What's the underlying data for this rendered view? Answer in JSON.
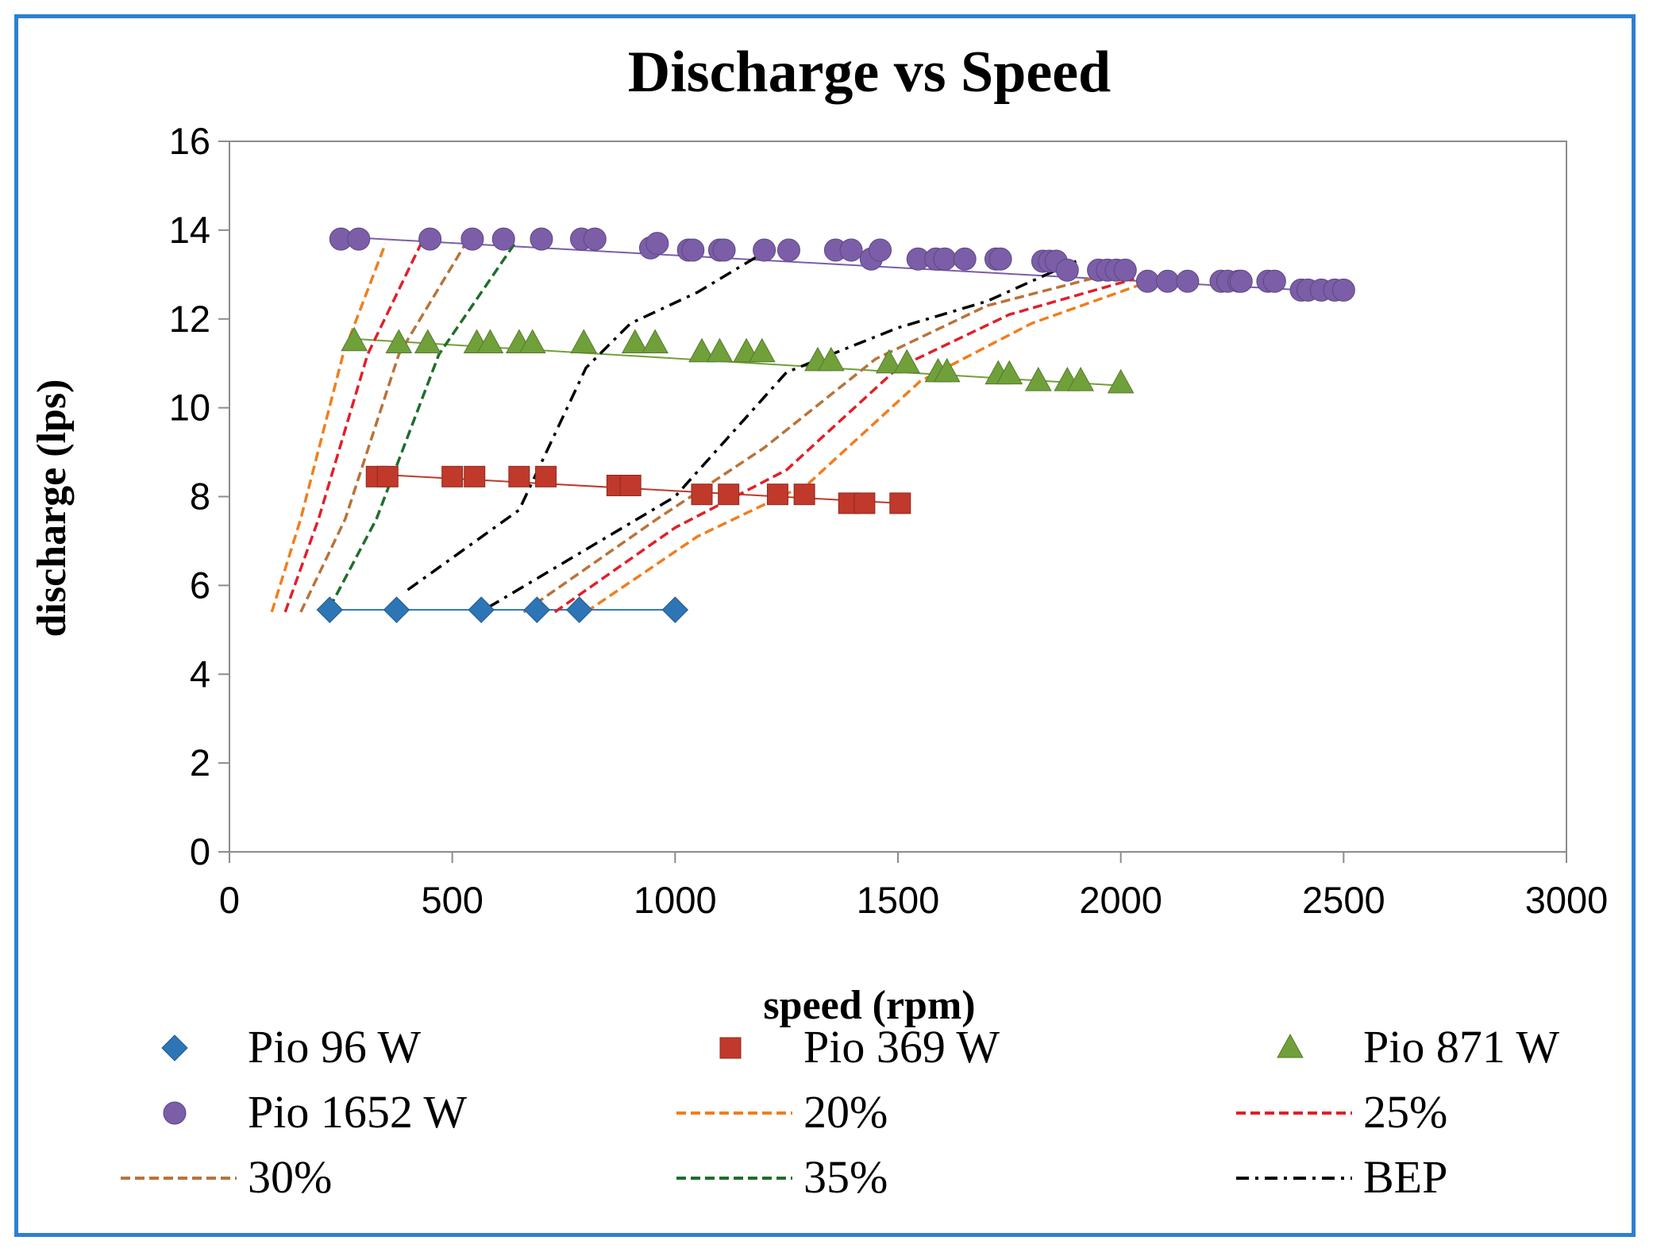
{
  "chart_data": {
    "type": "scatter",
    "title": "Discharge vs Speed",
    "xlabel": "speed (rpm)",
    "ylabel": "discharge (lps)",
    "xlim": [
      0,
      3000
    ],
    "ylim": [
      0,
      16
    ],
    "xticks": [
      0,
      500,
      1000,
      1500,
      2000,
      2500,
      3000
    ],
    "yticks": [
      0,
      2,
      4,
      6,
      8,
      10,
      12,
      14,
      16
    ],
    "grid": false,
    "legend_position": "bottom",
    "series": [
      {
        "name": "Pio 96 W",
        "kind": "markers",
        "marker": "diamond",
        "color": "#2e75b6",
        "x": [
          225,
          375,
          565,
          690,
          785,
          1000
        ],
        "y": [
          5.45,
          5.45,
          5.45,
          5.45,
          5.45,
          5.45
        ]
      },
      {
        "name": "Pio 369 W",
        "kind": "markers",
        "marker": "square",
        "color": "#c0392b",
        "x": [
          330,
          355,
          500,
          550,
          650,
          710,
          870,
          900,
          1060,
          1120,
          1230,
          1290,
          1390,
          1425,
          1505
        ],
        "y": [
          8.45,
          8.45,
          8.45,
          8.45,
          8.45,
          8.45,
          8.25,
          8.25,
          8.05,
          8.05,
          8.05,
          8.05,
          7.85,
          7.85,
          7.85
        ]
      },
      {
        "name": "Pio 871 W",
        "kind": "markers",
        "marker": "triangle",
        "color": "#70a03a",
        "x": [
          280,
          380,
          445,
          555,
          585,
          650,
          680,
          795,
          910,
          955,
          1060,
          1100,
          1160,
          1195,
          1320,
          1350,
          1480,
          1520,
          1590,
          1610,
          1725,
          1750,
          1815,
          1880,
          1910,
          2000
        ],
        "y": [
          11.5,
          11.45,
          11.45,
          11.45,
          11.45,
          11.45,
          11.45,
          11.45,
          11.45,
          11.45,
          11.25,
          11.25,
          11.25,
          11.25,
          11.05,
          11.05,
          11.0,
          11.0,
          10.8,
          10.8,
          10.75,
          10.75,
          10.6,
          10.6,
          10.6,
          10.55
        ]
      },
      {
        "name": "Pio 1652 W",
        "kind": "markers",
        "marker": "circle",
        "color": "#7b5ea7",
        "x": [
          250,
          290,
          450,
          545,
          615,
          700,
          790,
          820,
          945,
          960,
          1030,
          1040,
          1100,
          1110,
          1200,
          1255,
          1360,
          1395,
          1440,
          1460,
          1545,
          1585,
          1605,
          1650,
          1720,
          1730,
          1825,
          1840,
          1855,
          1880,
          1950,
          1970,
          1990,
          2010,
          2060,
          2105,
          2150,
          2225,
          2240,
          2265,
          2270,
          2330,
          2345,
          2405,
          2420,
          2450,
          2480,
          2500
        ],
        "y": [
          13.8,
          13.8,
          13.8,
          13.8,
          13.8,
          13.8,
          13.8,
          13.8,
          13.6,
          13.7,
          13.55,
          13.55,
          13.55,
          13.55,
          13.55,
          13.55,
          13.55,
          13.55,
          13.35,
          13.55,
          13.35,
          13.35,
          13.35,
          13.35,
          13.35,
          13.35,
          13.3,
          13.3,
          13.3,
          13.1,
          13.1,
          13.1,
          13.1,
          13.1,
          12.85,
          12.85,
          12.85,
          12.85,
          12.85,
          12.85,
          12.85,
          12.85,
          12.85,
          12.65,
          12.65,
          12.65,
          12.65,
          12.65
        ]
      },
      {
        "name": "20%",
        "kind": "line",
        "dash": "dashed",
        "color": "#f07e1e",
        "x": [
          95,
          160,
          255,
          350
        ],
        "y": [
          5.4,
          7.5,
          11.2,
          13.7
        ]
      },
      {
        "name": "20%",
        "kind": "line",
        "dash": "dashed",
        "color": "#f07e1e",
        "legend": false,
        "x": [
          800,
          1050,
          1300,
          1550,
          1800,
          2080
        ],
        "y": [
          5.4,
          7.1,
          8.3,
          10.6,
          11.9,
          12.9
        ]
      },
      {
        "name": "25%",
        "kind": "line",
        "dash": "dashed",
        "color": "#e0202a",
        "x": [
          125,
          200,
          310,
          430
        ],
        "y": [
          5.4,
          7.5,
          11.2,
          13.7
        ]
      },
      {
        "name": "25%",
        "kind": "line",
        "dash": "dashed",
        "color": "#e0202a",
        "legend": false,
        "x": [
          730,
          1000,
          1250,
          1500,
          1750,
          2030
        ],
        "y": [
          5.4,
          7.3,
          8.6,
          10.9,
          12.1,
          12.9
        ]
      },
      {
        "name": "30%",
        "kind": "line",
        "dash": "dashed",
        "color": "#b8733a",
        "x": [
          160,
          260,
          380,
          530
        ],
        "y": [
          5.4,
          7.5,
          11.2,
          13.7
        ]
      },
      {
        "name": "30%",
        "kind": "line",
        "dash": "dashed",
        "color": "#b8733a",
        "legend": false,
        "x": [
          660,
          960,
          1200,
          1450,
          1700,
          1970
        ],
        "y": [
          5.4,
          7.5,
          9.1,
          11.1,
          12.3,
          13.0
        ]
      },
      {
        "name": "35%",
        "kind": "line",
        "dash": "dashed",
        "color": "#1f6e2c",
        "x": [
          225,
          330,
          470,
          640
        ],
        "y": [
          5.5,
          7.5,
          11.2,
          13.7
        ]
      },
      {
        "name": "BEP",
        "kind": "line",
        "dash": "dash-dot",
        "color": "#000000",
        "x": [
          400,
          650,
          800,
          900,
          1050,
          1200
        ],
        "y": [
          5.9,
          7.7,
          10.9,
          11.9,
          12.6,
          13.5
        ]
      },
      {
        "name": "BEP",
        "kind": "line",
        "dash": "dash-dot",
        "color": "#000000",
        "legend": false,
        "x": [
          580,
          1000,
          1250,
          1500,
          1700,
          1900
        ],
        "y": [
          5.5,
          8.0,
          10.8,
          11.8,
          12.4,
          13.3
        ]
      }
    ],
    "fit_lines": [
      {
        "name": "Pio 96 W",
        "color": "#2e75b6",
        "x": [
          225,
          1000
        ],
        "y": [
          5.45,
          5.45
        ]
      },
      {
        "name": "Pio 369 W",
        "color": "#c0392b",
        "x": [
          330,
          1505
        ],
        "y": [
          8.5,
          7.85
        ]
      },
      {
        "name": "Pio 871 W",
        "color": "#70a03a",
        "x": [
          280,
          2000
        ],
        "y": [
          11.55,
          10.5
        ]
      },
      {
        "name": "Pio 1652 W",
        "color": "#7b5ea7",
        "x": [
          250,
          2500
        ],
        "y": [
          13.85,
          12.6
        ]
      }
    ],
    "legend": [
      {
        "label": "Pio 96 W",
        "symbol": "diamond",
        "color": "#2e75b6"
      },
      {
        "label": "Pio 369 W",
        "symbol": "square",
        "color": "#c0392b"
      },
      {
        "label": "Pio 871 W",
        "symbol": "triangle",
        "color": "#70a03a"
      },
      {
        "label": "Pio 1652 W",
        "symbol": "circle",
        "color": "#7b5ea7"
      },
      {
        "label": "20%",
        "symbol": "dashed",
        "color": "#f07e1e"
      },
      {
        "label": "25%",
        "symbol": "dashed",
        "color": "#e0202a"
      },
      {
        "label": "30%",
        "symbol": "dashed",
        "color": "#b8733a"
      },
      {
        "label": "35%",
        "symbol": "dashed",
        "color": "#1f6e2c"
      },
      {
        "label": "BEP",
        "symbol": "dash-dot",
        "color": "#000000"
      }
    ]
  }
}
